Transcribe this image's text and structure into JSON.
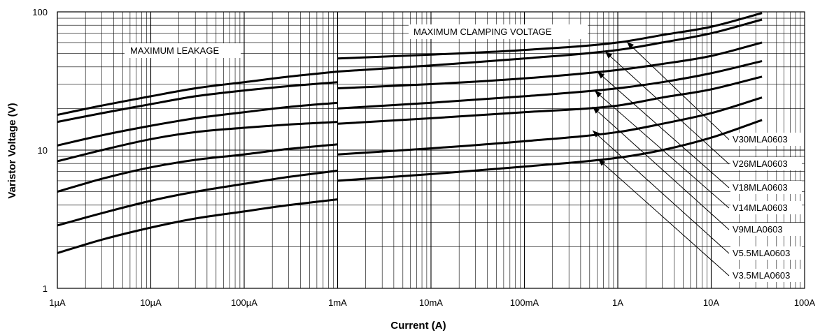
{
  "chart_data": {
    "type": "line",
    "x_scale": "log",
    "y_scale": "log",
    "xlim": [
      1e-06,
      100
    ],
    "ylim": [
      1,
      100
    ],
    "grid": true,
    "xlabel": "Current (A)",
    "ylabel": "Varistor Voltage (V)",
    "x_tick_labels": [
      "1µA",
      "10µA",
      "100µA",
      "1mA",
      "10mA",
      "100mA",
      "1A",
      "10A",
      "100A"
    ],
    "y_tick_labels": [
      "1",
      "10",
      "100"
    ],
    "annotations": {
      "leakage": "MAXIMUM LEAKAGE",
      "clamping": "MAXIMUM CLAMPING VOLTAGE"
    },
    "series": [
      {
        "name": "V30MLA0603",
        "leakage": {
          "x": [
            1e-06,
            3e-06,
            1e-05,
            3e-05,
            0.0001,
            0.0003,
            0.001
          ],
          "y": [
            18.0,
            21.0,
            24.5,
            28.0,
            31.0,
            34.0,
            37.0
          ]
        },
        "clamping": {
          "x": [
            0.001,
            0.01,
            0.1,
            1,
            3,
            10,
            35
          ],
          "y": [
            46.0,
            49.0,
            53.0,
            60.0,
            68.0,
            78.0,
            98.0
          ]
        }
      },
      {
        "name": "V26MLA0603",
        "leakage": {
          "x": [
            1e-06,
            3e-06,
            1e-05,
            3e-05,
            0.0001,
            0.0003,
            0.001
          ],
          "y": [
            16.0,
            18.5,
            21.5,
            24.5,
            27.0,
            29.0,
            31.0
          ]
        },
        "clamping": {
          "x": [
            0.001,
            0.01,
            0.1,
            1,
            3,
            10,
            35
          ],
          "y": [
            37.0,
            41.0,
            46.0,
            53.0,
            60.0,
            70.0,
            88.0
          ]
        }
      },
      {
        "name": "V18MLA0603",
        "leakage": {
          "x": [
            1e-06,
            3e-06,
            1e-05,
            3e-05,
            0.0001,
            0.0003,
            0.001
          ],
          "y": [
            10.8,
            12.8,
            15.0,
            17.0,
            18.8,
            20.5,
            22.0
          ]
        },
        "clamping": {
          "x": [
            0.001,
            0.01,
            0.1,
            1,
            3,
            10,
            35
          ],
          "y": [
            28.0,
            30.0,
            33.0,
            38.0,
            42.0,
            48.0,
            60.0
          ]
        }
      },
      {
        "name": "V14MLA0603",
        "leakage": {
          "x": [
            1e-06,
            3e-06,
            1e-05,
            3e-05,
            0.0001,
            0.0003,
            0.001
          ],
          "y": [
            8.3,
            10.0,
            12.0,
            13.5,
            14.5,
            15.3,
            16.0
          ]
        },
        "clamping": {
          "x": [
            0.001,
            0.01,
            0.1,
            1,
            3,
            10,
            35
          ],
          "y": [
            20.0,
            22.0,
            24.5,
            28.0,
            31.0,
            36.0,
            44.0
          ]
        }
      },
      {
        "name": "V9MLA0603",
        "leakage": {
          "x": [
            1e-06,
            3e-06,
            1e-05,
            3e-05,
            0.0001,
            0.0003,
            0.001
          ],
          "y": [
            5.0,
            6.2,
            7.5,
            8.5,
            9.3,
            10.2,
            11.0
          ]
        },
        "clamping": {
          "x": [
            0.001,
            0.01,
            0.1,
            1,
            3,
            10,
            35
          ],
          "y": [
            15.5,
            17.0,
            18.8,
            21.0,
            24.0,
            27.5,
            34.0
          ]
        }
      },
      {
        "name": "V5.5MLA0603",
        "leakage": {
          "x": [
            1e-06,
            3e-06,
            1e-05,
            3e-05,
            0.0001,
            0.0003,
            0.001
          ],
          "y": [
            2.85,
            3.5,
            4.3,
            5.0,
            5.7,
            6.4,
            7.1
          ]
        },
        "clamping": {
          "x": [
            0.001,
            0.01,
            0.1,
            1,
            3,
            10,
            35
          ],
          "y": [
            9.3,
            10.3,
            11.6,
            13.5,
            15.5,
            18.5,
            24.0
          ]
        }
      },
      {
        "name": "V3.5MLA0603",
        "leakage": {
          "x": [
            1e-06,
            3e-06,
            1e-05,
            3e-05,
            0.0001,
            0.0003,
            0.001
          ],
          "y": [
            1.8,
            2.25,
            2.75,
            3.2,
            3.6,
            4.0,
            4.4
          ]
        },
        "clamping": {
          "x": [
            0.001,
            0.01,
            0.1,
            1,
            3,
            10,
            35
          ],
          "y": [
            6.0,
            6.7,
            7.6,
            8.8,
            10.0,
            12.3,
            16.5
          ]
        }
      }
    ],
    "colors": {
      "line": "#000000",
      "background": "#ffffff"
    }
  }
}
